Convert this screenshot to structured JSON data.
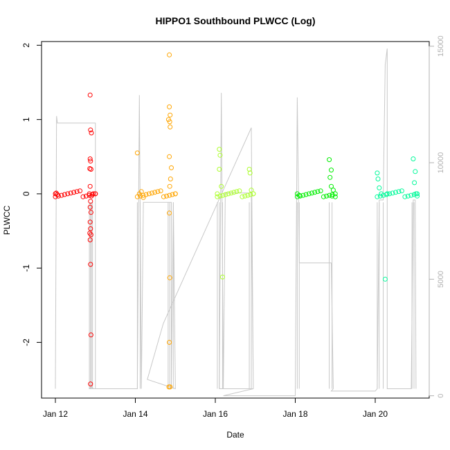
{
  "chart_data": {
    "type": "scatter",
    "title": "HIPPO1 Southbound PLWCC (Log)",
    "xlabel": "Date",
    "ylabel": "PLWCC",
    "x_ticks": [
      "Jan 12",
      "Jan 14",
      "Jan 16",
      "Jan 18",
      "Jan 20"
    ],
    "x_range_days": [
      0,
      9
    ],
    "ylim": [
      -2.75,
      2.05
    ],
    "y_ticks": [
      -2,
      -1,
      0,
      1,
      2
    ],
    "right_axis": {
      "ticks": [
        0,
        5000,
        10000,
        15000
      ],
      "range": [
        -100,
        15200
      ],
      "color": "#b0b0b0"
    },
    "grid": false,
    "series": [
      {
        "color": "#ff0000",
        "points": [
          [
            0.0,
            0
          ],
          [
            0.02,
            0.01
          ],
          [
            0.05,
            -0.01
          ],
          [
            0.85,
            0
          ],
          [
            0.87,
            1.33
          ],
          [
            0.88,
            0.86
          ],
          [
            0.9,
            0.82
          ],
          [
            0.87,
            0.47
          ],
          [
            0.88,
            0.44
          ],
          [
            0.86,
            0.34
          ],
          [
            0.89,
            0.33
          ],
          [
            0.87,
            0.1
          ],
          [
            0.9,
            -0.03
          ],
          [
            0.88,
            -0.1
          ],
          [
            0.87,
            -0.18
          ],
          [
            0.89,
            -0.25
          ],
          [
            0.87,
            -0.38
          ],
          [
            0.88,
            -0.47
          ],
          [
            0.86,
            -0.53
          ],
          [
            0.89,
            -0.55
          ],
          [
            0.87,
            -0.62
          ],
          [
            0.88,
            -0.95
          ],
          [
            0.89,
            -1.9
          ],
          [
            0.88,
            -2.56
          ],
          [
            0.95,
            0
          ],
          [
            1.0,
            0
          ]
        ]
      },
      {
        "color": "#ffa500",
        "points": [
          [
            2.05,
            0.55
          ],
          [
            2.1,
            0
          ],
          [
            2.15,
            0.03
          ],
          [
            2.2,
            -0.05
          ],
          [
            2.85,
            1.87
          ],
          [
            2.85,
            1.17
          ],
          [
            2.87,
            1.06
          ],
          [
            2.83,
            1.0
          ],
          [
            2.86,
            0.97
          ],
          [
            2.87,
            0.9
          ],
          [
            2.85,
            0.5
          ],
          [
            2.9,
            0.35
          ],
          [
            2.88,
            0.2
          ],
          [
            2.86,
            0.1
          ],
          [
            2.85,
            -0.26
          ],
          [
            2.86,
            -1.13
          ],
          [
            2.85,
            -2.0
          ],
          [
            2.84,
            -2.6
          ],
          [
            2.87,
            -2.6
          ],
          [
            3.0,
            0
          ]
        ]
      },
      {
        "color": "#adff2f",
        "points": [
          [
            4.05,
            0
          ],
          [
            4.1,
            0.6
          ],
          [
            4.12,
            0.52
          ],
          [
            4.1,
            0.33
          ],
          [
            4.15,
            0.1
          ],
          [
            4.18,
            -1.12
          ],
          [
            4.85,
            0.33
          ],
          [
            4.87,
            0.28
          ],
          [
            4.9,
            0.05
          ],
          [
            4.95,
            0
          ]
        ]
      },
      {
        "color": "#00ee00",
        "points": [
          [
            6.05,
            0
          ],
          [
            6.1,
            -0.02
          ],
          [
            6.85,
            0.46
          ],
          [
            6.9,
            0.32
          ],
          [
            6.87,
            0.22
          ],
          [
            6.9,
            0.1
          ],
          [
            6.95,
            0.05
          ],
          [
            6.92,
            -0.03
          ],
          [
            7.0,
            -0.04
          ]
        ]
      },
      {
        "color": "#00fa9a",
        "points": [
          [
            8.05,
            0.28
          ],
          [
            8.07,
            0.2
          ],
          [
            8.1,
            0.08
          ],
          [
            8.15,
            0
          ],
          [
            8.25,
            -1.15
          ],
          [
            8.3,
            0
          ],
          [
            8.95,
            0.47
          ],
          [
            9.0,
            0.3
          ],
          [
            8.98,
            0.15
          ],
          [
            9.02,
            0
          ],
          [
            9.05,
            -0.03
          ]
        ]
      }
    ]
  }
}
